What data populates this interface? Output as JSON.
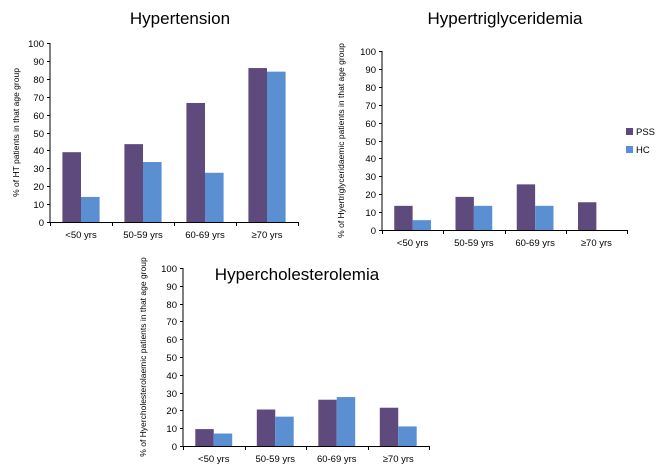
{
  "colors": {
    "PSS": "#5f4a7e",
    "HC": "#5a8fd2"
  },
  "chart_data": [
    {
      "id": "ht",
      "type": "bar",
      "title": "Hypertension",
      "ylabel": "% of HT patients in that age group",
      "categories": [
        "<50 yrs",
        "50-59 yrs",
        "60-69 yrs",
        "≥70 yrs"
      ],
      "series": [
        {
          "name": "PSS",
          "values": [
            39,
            43.5,
            66.5,
            86
          ]
        },
        {
          "name": "HC",
          "values": [
            14,
            33.5,
            27.5,
            84
          ]
        }
      ],
      "ylim": [
        0,
        100
      ],
      "yticks": [
        "0",
        "10",
        "20",
        "30",
        "40",
        "50",
        "60",
        "70",
        "80",
        "90",
        "100"
      ],
      "legend": false
    },
    {
      "id": "htg",
      "type": "bar",
      "title": "Hypertriglyceridemia",
      "ylabel": "% of Hyertriglyceridaemic patients in that age group",
      "categories": [
        "<50 yrs",
        "50-59 yrs",
        "60-69 yrs",
        "≥70 yrs"
      ],
      "series": [
        {
          "name": "PSS",
          "values": [
            13.5,
            18.5,
            25.5,
            15.5
          ]
        },
        {
          "name": "HC",
          "values": [
            5.5,
            13.5,
            13.5,
            0
          ]
        }
      ],
      "ylim": [
        0,
        100
      ],
      "yticks": [
        "0",
        "10",
        "20",
        "30",
        "40",
        "50",
        "60",
        "70",
        "80",
        "90",
        "100"
      ],
      "legend": true
    },
    {
      "id": "hc",
      "type": "bar",
      "title": "Hypercholesterolemia",
      "ylabel": "% of Hyercholesterolaemic patients in that age group",
      "categories": [
        "<50 yrs",
        "50-59 yrs",
        "60-69 yrs",
        "≥70 yrs"
      ],
      "series": [
        {
          "name": "PSS",
          "values": [
            9.5,
            20.5,
            26,
            21.5
          ]
        },
        {
          "name": "HC",
          "values": [
            7,
            16.5,
            27.5,
            11
          ]
        }
      ],
      "ylim": [
        0,
        100
      ],
      "yticks": [
        "0",
        "10",
        "20",
        "30",
        "40",
        "50",
        "60",
        "70",
        "80",
        "90",
        "100"
      ],
      "legend": false
    }
  ]
}
